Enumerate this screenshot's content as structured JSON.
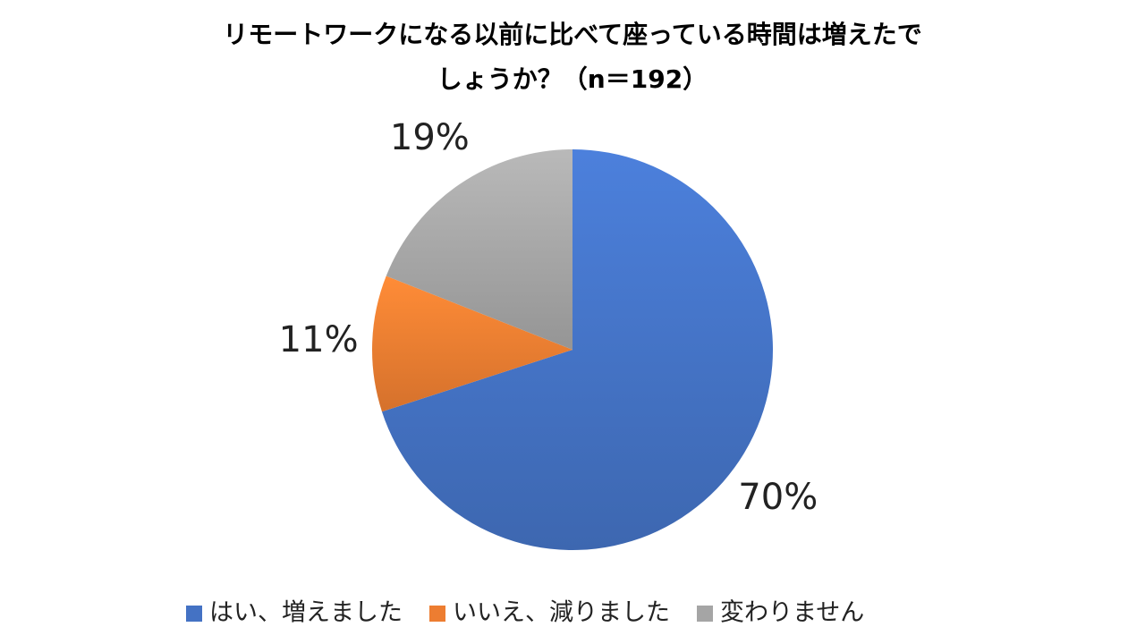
{
  "chart_data": {
    "type": "pie",
    "title": "リモートワークになる以前に比べて座っている時間は増えたでしょうか？（n＝192）",
    "categories": [
      "はい、増えました",
      "いいえ、減りました",
      "変わりません"
    ],
    "values": [
      70,
      11,
      19
    ],
    "value_labels": [
      "70%",
      "11%",
      "19%"
    ],
    "colors": [
      "#4472c4",
      "#ed7d31",
      "#a5a5a5"
    ],
    "legend": "bottom"
  }
}
